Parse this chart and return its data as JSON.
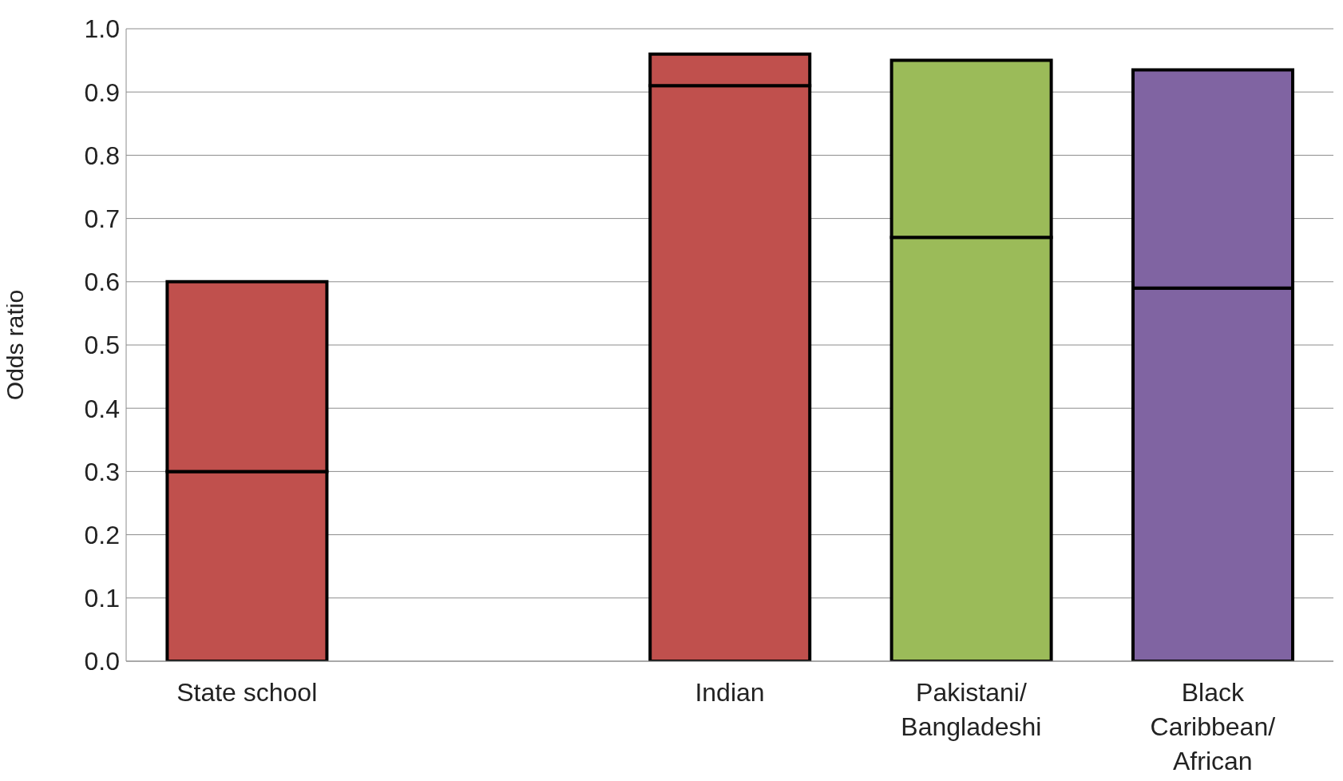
{
  "chart_data": {
    "type": "bar",
    "stacked": true,
    "ylabel": "Odds ratio",
    "categories": [
      "State school",
      null,
      "Indian",
      "Pakistani/Bangladeshi",
      "Black Caribbean/African"
    ],
    "series": [
      {
        "colors": [
          "#c0504d",
          null,
          "#c0504d",
          "#9bbb59",
          "#8064a2"
        ],
        "values": [
          0.3,
          null,
          0.91,
          0.67,
          0.59
        ]
      },
      {
        "colors": [
          "#c0504d",
          null,
          "#c0504d",
          "#9bbb59",
          "#8064a2"
        ],
        "values": [
          0.3,
          null,
          0.05,
          0.28,
          0.345
        ]
      }
    ],
    "ylim": [
      0,
      1
    ],
    "yticks": [
      {
        "value": 0,
        "label": "0.0"
      },
      0.1,
      0.2,
      0.3,
      0.4,
      0.5,
      0.6,
      0.7,
      0.8,
      0.9,
      {
        "value": 1,
        "label": "1.0"
      }
    ],
    "grid": "y",
    "legend": false
  }
}
